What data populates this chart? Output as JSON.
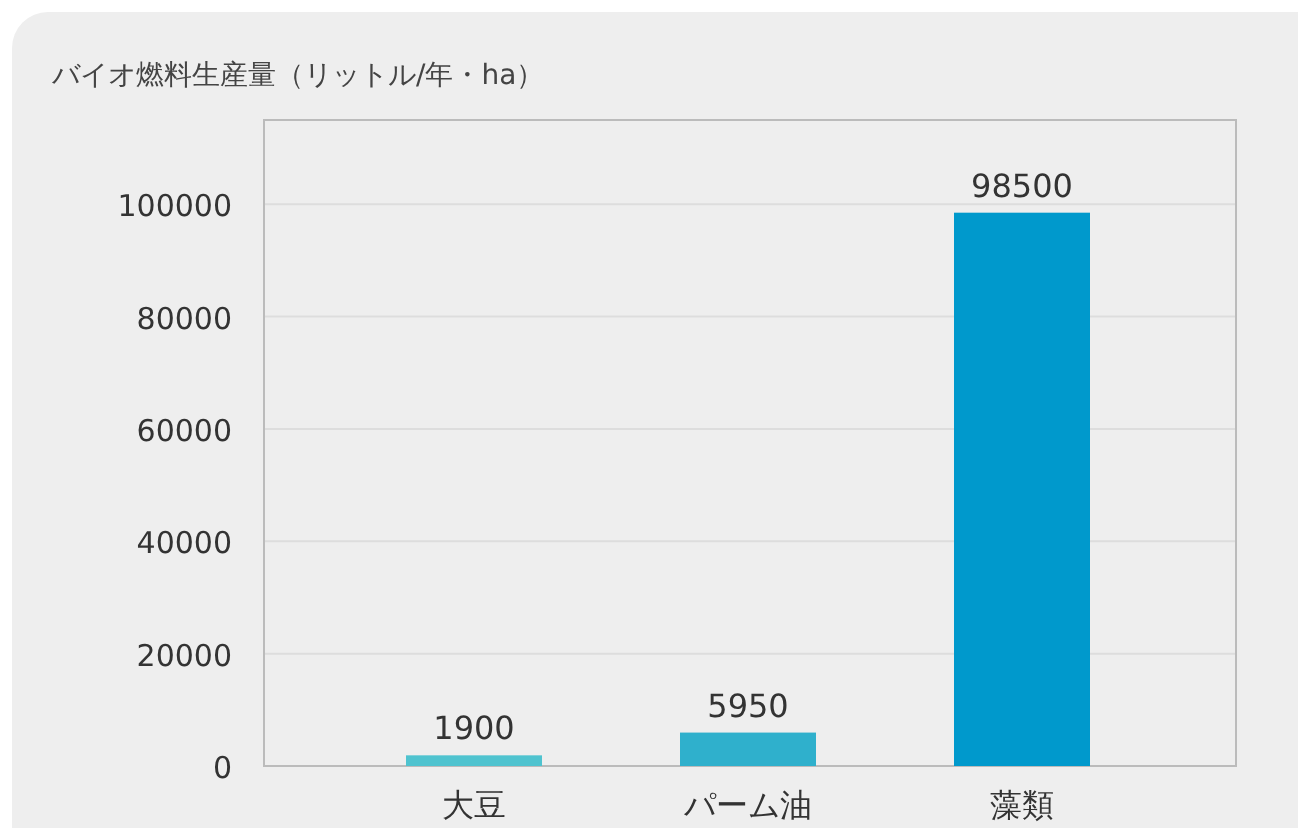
{
  "chart_data": {
    "type": "bar",
    "title": "バイオ燃料生産量（リットル/年・ha）",
    "categories": [
      "大豆",
      "パーム油",
      "藻類"
    ],
    "values": [
      1900,
      5950,
      98500
    ],
    "colors": [
      "#4fc3cf",
      "#2fb0cc",
      "#0099cc"
    ],
    "ylim": [
      0,
      115000
    ],
    "yticks": [
      0,
      20000,
      40000,
      60000,
      80000,
      100000
    ],
    "grid": "y",
    "data_labels": true
  }
}
